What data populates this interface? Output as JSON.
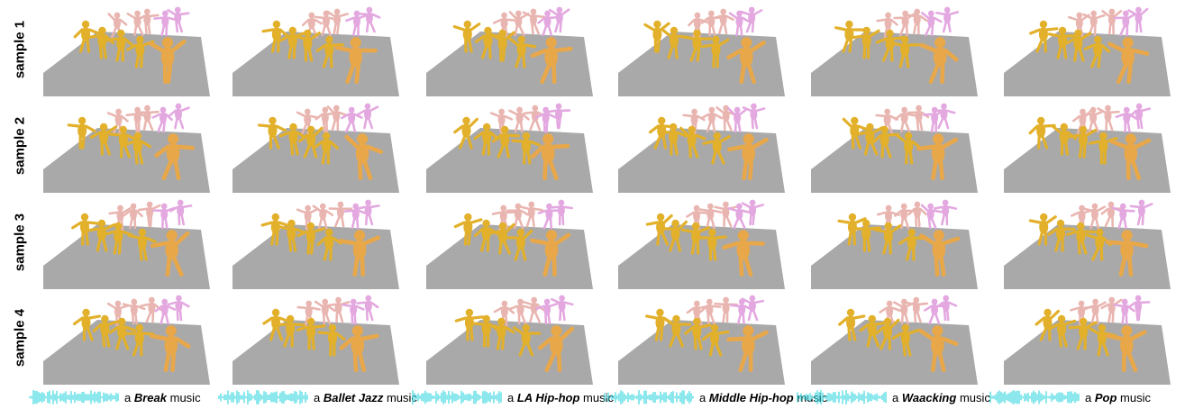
{
  "rows": [
    {
      "label": "sample 1"
    },
    {
      "label": "sample 2"
    },
    {
      "label": "sample 3"
    },
    {
      "label": "sample 4"
    }
  ],
  "columns": [
    {
      "prefix": "a",
      "genre": "Break",
      "suffix": "music"
    },
    {
      "prefix": "a",
      "genre": "Ballet Jazz",
      "suffix": "music"
    },
    {
      "prefix": "a",
      "genre": "LA Hip-hop",
      "suffix": "music"
    },
    {
      "prefix": "a",
      "genre": "Middle Hip-hop",
      "suffix": "music"
    },
    {
      "prefix": "a",
      "genre": "Waacking",
      "suffix": "music"
    },
    {
      "prefix": "a",
      "genre": "Pop",
      "suffix": "music"
    }
  ],
  "colors": {
    "floor": "#a9a9a9",
    "dancer_near": "#e8a84a",
    "dancer_mid": "#e2b02a",
    "dancer_far": "#e9b5b0",
    "dancer_pink": "#e3a8e0",
    "waveform": "#3fd9e0"
  }
}
